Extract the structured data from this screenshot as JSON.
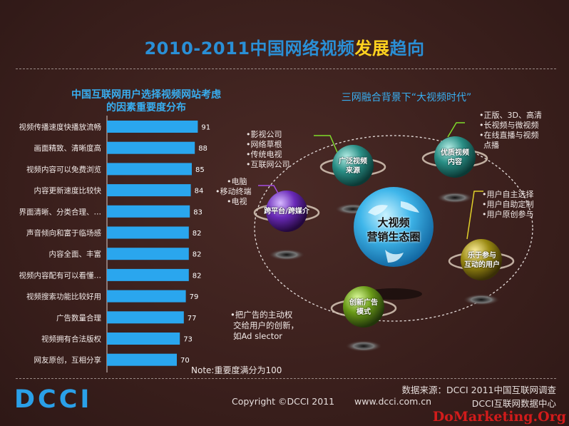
{
  "title": {
    "part1": "2010-2011中国网络视频",
    "part2": "发展",
    "part3": "趋向"
  },
  "left_panel": {
    "title_line1": "中国互联网用户选择视频网站考虑",
    "title_line2": "的因素重要度分布",
    "note": "Note:重要度满分为100"
  },
  "chart_data": {
    "type": "bar",
    "orientation": "horizontal",
    "categories": [
      "视频传播速度快播放流畅",
      "画面精致、清晰度高",
      "视频内容可以免费浏览",
      "内容更新速度比较快",
      "界面清晰、分类合理、…",
      "声音倾向和富于临场感",
      "内容全面、丰富",
      "视频内容配有可以看懂…",
      "视频搜索功能比较好用",
      "广告数量合理",
      "视频拥有合法版权",
      "网友原创，互相分享"
    ],
    "values": [
      91,
      88,
      85,
      84,
      83,
      82,
      82,
      82,
      79,
      77,
      73,
      70
    ],
    "xlim": [
      0,
      100
    ],
    "bar_color": "#2aa6ee"
  },
  "right_panel": {
    "title": "三网融合背景下“大视频时代”",
    "center_line1": "大视频",
    "center_line2": "营销生态圈",
    "nodes": {
      "source": {
        "line1": "广泛视频",
        "line2": "来源"
      },
      "quality": {
        "line1": "优质视频",
        "line2": "内容"
      },
      "platform": {
        "line1": "跨平台/跨媒介",
        "line2": ""
      },
      "users": {
        "line1": "乐于参与",
        "line2": "互动的用户"
      },
      "ads": {
        "line1": "创新广告",
        "line2": "模式"
      }
    },
    "notes": {
      "source": [
        "•影视公司",
        "•网络草根",
        "•传统电视",
        "•互联网公司"
      ],
      "quality": [
        "•正版、3D、高清",
        "•长视频与微视频",
        "•在线直播与视频",
        "点播"
      ],
      "platform": [
        "•电脑",
        "•移动终端",
        "•电视"
      ],
      "users": [
        "•用户自主选择",
        "•用户自助定制",
        "•用户原创参与"
      ],
      "ads": [
        "•把广告的主动权",
        "交给用户的创新，",
        "如Ad slector"
      ]
    }
  },
  "footer": {
    "logo": "DCCI",
    "source": "数据来源：DCCI 2011中国互联网调查",
    "copyright": "Copyright ©DCCI 2011",
    "url": "www.dcci.com.cn",
    "center": "DCCI互联网数据中心",
    "watermark": "DoMarketing.Org"
  },
  "colors": {
    "accent_blue": "#2a8fd6",
    "highlight_yellow": "#ffd21f",
    "background": "#3a1f1c"
  }
}
